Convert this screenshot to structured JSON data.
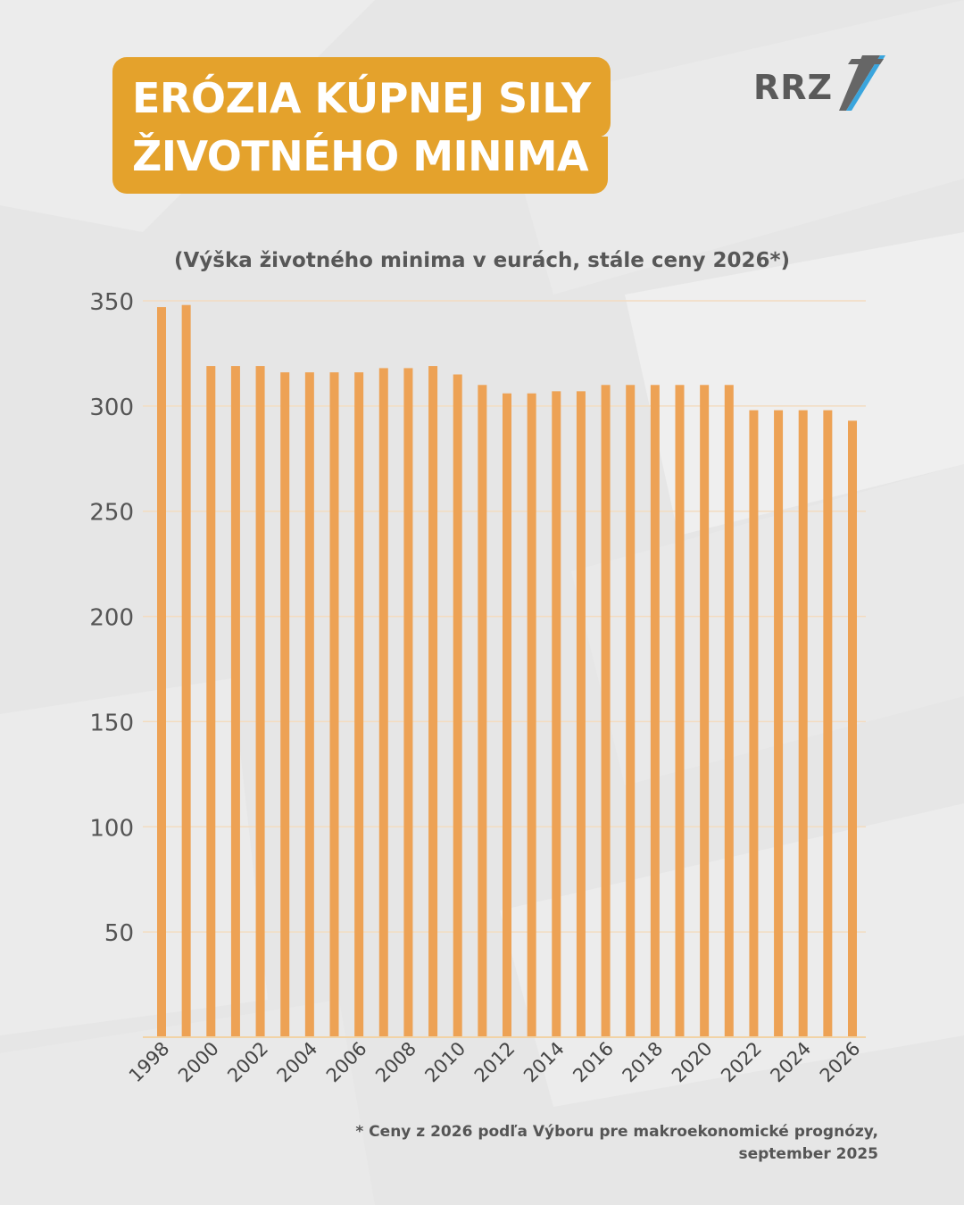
{
  "header": {
    "title_line1": "ERÓZIA KÚPNEJ SILY",
    "title_line2": "ŽIVOTNÉHO MINIMA",
    "logo_text": "RRZ"
  },
  "colors": {
    "accent": "#e4a22c",
    "bar": "#eda255",
    "logo_stripe_blue": "#3aa5dd",
    "text_dark": "#575757"
  },
  "footnote": {
    "line1": "* Ceny z 2026 podľa Výboru pre makroekonomické prognózy,",
    "line2": "september 2025"
  },
  "chart_data": {
    "type": "bar",
    "subtitle": "(Výška životného minima v eurách, stále ceny 2026*)",
    "xlabel": "",
    "ylabel": "",
    "ylim": [
      0,
      350
    ],
    "yticks": [
      50,
      100,
      150,
      200,
      250,
      300,
      350
    ],
    "grid": true,
    "categories": [
      "1998",
      "1999",
      "2000",
      "2001",
      "2002",
      "2003",
      "2004",
      "2005",
      "2006",
      "2007",
      "2008",
      "2009",
      "2010",
      "2011",
      "2012",
      "2013",
      "2014",
      "2015",
      "2016",
      "2017",
      "2018",
      "2019",
      "2020",
      "2021",
      "2022",
      "2023",
      "2024",
      "2025",
      "2026"
    ],
    "xtick_labels": [
      "1998",
      "2000",
      "2002",
      "2004",
      "2006",
      "2008",
      "2010",
      "2012",
      "2014",
      "2016",
      "2018",
      "2020",
      "2022",
      "2024",
      "2026"
    ],
    "values": [
      347,
      348,
      319,
      319,
      319,
      316,
      316,
      316,
      316,
      318,
      318,
      319,
      315,
      310,
      306,
      306,
      307,
      307,
      310,
      310,
      310,
      310,
      310,
      310,
      298,
      298,
      298,
      298,
      293
    ]
  }
}
